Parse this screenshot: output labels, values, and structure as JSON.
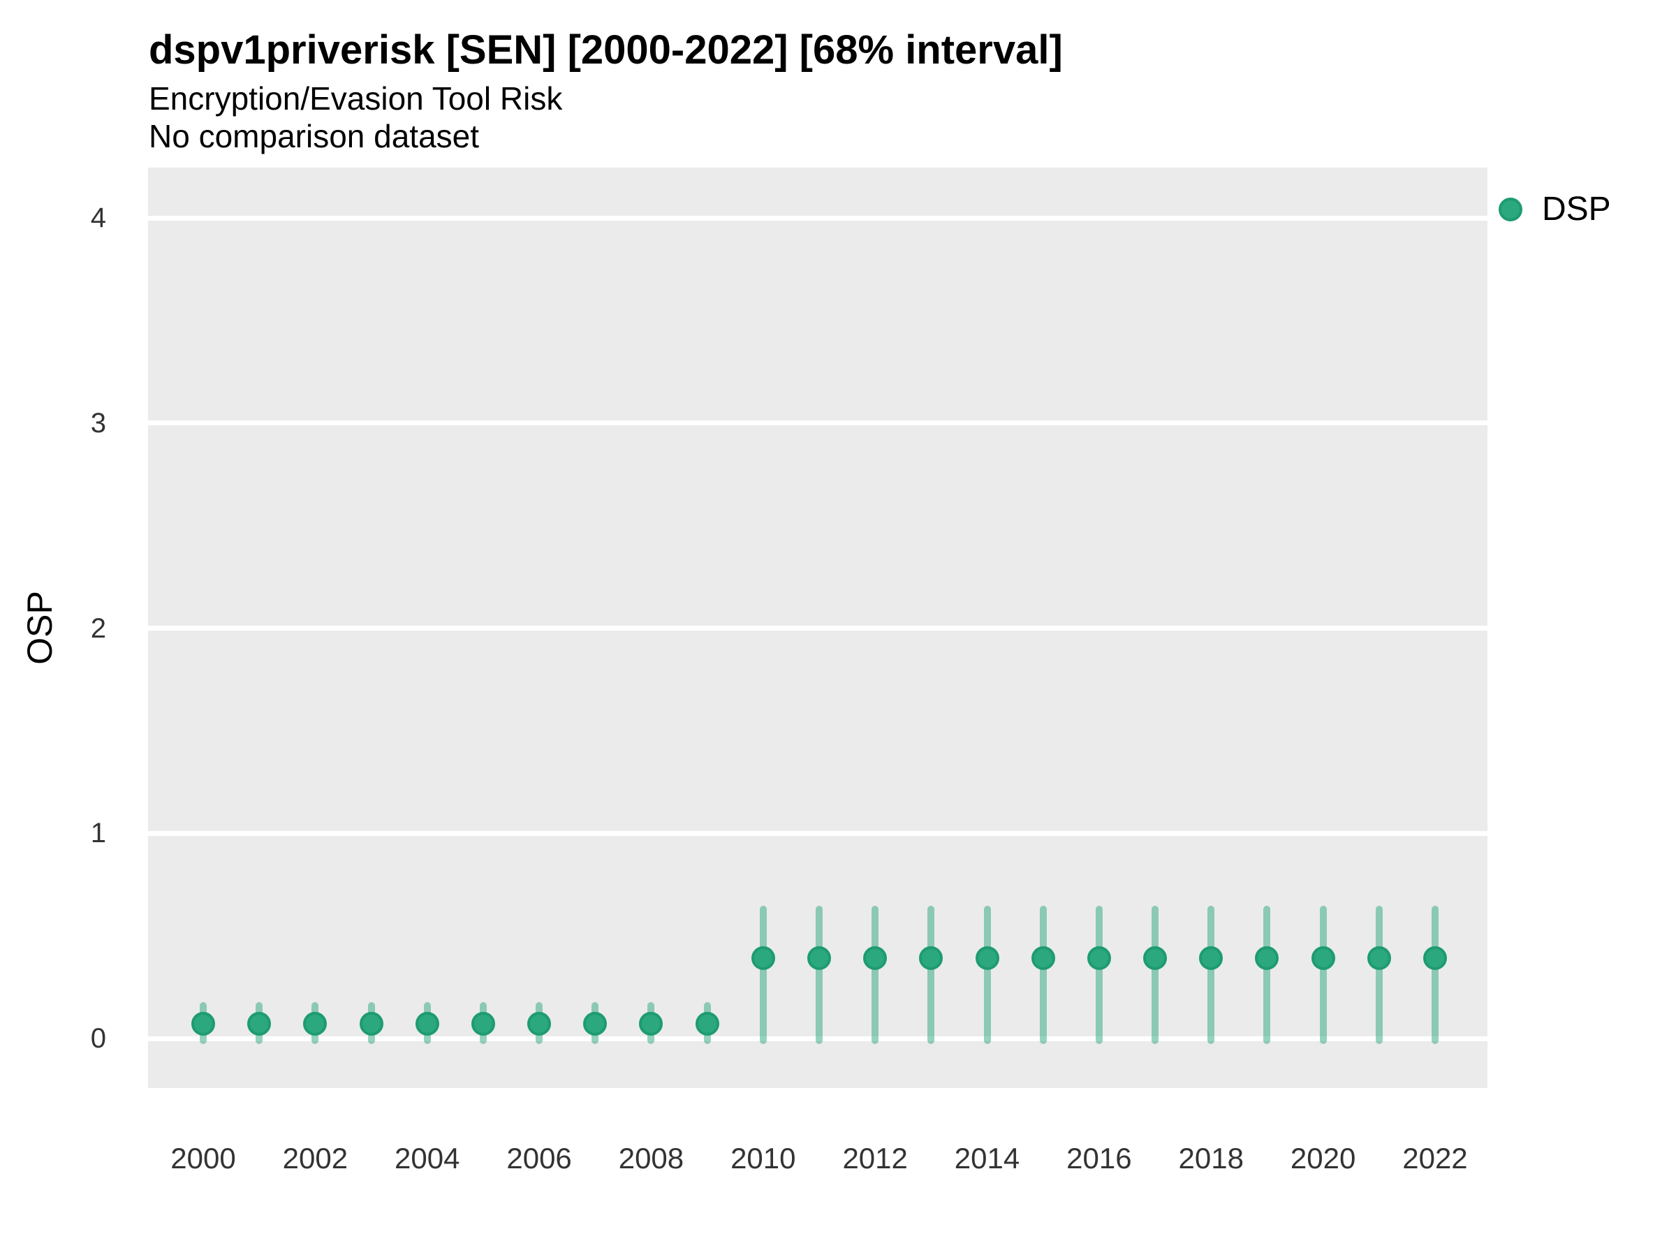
{
  "header": {
    "title": "dspv1priverisk [SEN] [2000-2022] [68% interval]",
    "subtitle": "Encryption/Evasion Tool Risk",
    "note": "No comparison dataset"
  },
  "legend": {
    "position": "top-right",
    "items": [
      {
        "label": "DSP",
        "marker": "circle",
        "color": "#2CA87F"
      }
    ]
  },
  "axes": {
    "y_label": "OSP",
    "x_label": "",
    "y_ticks": [
      0,
      1,
      2,
      3,
      4
    ],
    "x_ticks": [
      2000,
      2002,
      2004,
      2006,
      2008,
      2010,
      2012,
      2014,
      2016,
      2018,
      2020,
      2022
    ]
  },
  "chart_data": {
    "type": "scatter",
    "title": "dspv1priverisk [SEN] [2000-2022] [68% interval]",
    "subtitle": "Encryption/Evasion Tool Risk",
    "note": "No comparison dataset",
    "interval_label": "68% interval",
    "xlabel": "",
    "ylabel": "OSP",
    "x_ticks": [
      2000,
      2002,
      2004,
      2006,
      2008,
      2010,
      2012,
      2014,
      2016,
      2018,
      2020,
      2022
    ],
    "y_ticks": [
      0,
      1,
      2,
      3,
      4
    ],
    "xlim": [
      1999.0,
      2023.0
    ],
    "ylim": [
      -0.24,
      4.25
    ],
    "grid": "horizontal-major-only",
    "panel_background": "#EBEBEB",
    "gridline_color": "#FFFFFF",
    "legend_position": "top-right",
    "series": [
      {
        "name": "DSP",
        "marker_color": "#2CA87F",
        "marker_edge_color": "#1E9B73",
        "interval_color": "rgba(44,168,127,0.5)",
        "points": [
          {
            "year": 2000,
            "value": 0.07,
            "lower": -0.01,
            "upper": 0.16
          },
          {
            "year": 2001,
            "value": 0.07,
            "lower": -0.01,
            "upper": 0.16
          },
          {
            "year": 2002,
            "value": 0.07,
            "lower": -0.01,
            "upper": 0.16
          },
          {
            "year": 2003,
            "value": 0.07,
            "lower": -0.01,
            "upper": 0.16
          },
          {
            "year": 2004,
            "value": 0.07,
            "lower": -0.01,
            "upper": 0.16
          },
          {
            "year": 2005,
            "value": 0.07,
            "lower": -0.01,
            "upper": 0.16
          },
          {
            "year": 2006,
            "value": 0.07,
            "lower": -0.01,
            "upper": 0.16
          },
          {
            "year": 2007,
            "value": 0.07,
            "lower": -0.01,
            "upper": 0.16
          },
          {
            "year": 2008,
            "value": 0.07,
            "lower": -0.01,
            "upper": 0.16
          },
          {
            "year": 2009,
            "value": 0.07,
            "lower": -0.01,
            "upper": 0.16
          },
          {
            "year": 2010,
            "value": 0.39,
            "lower": -0.01,
            "upper": 0.63
          },
          {
            "year": 2011,
            "value": 0.39,
            "lower": -0.01,
            "upper": 0.63
          },
          {
            "year": 2012,
            "value": 0.39,
            "lower": -0.01,
            "upper": 0.63
          },
          {
            "year": 2013,
            "value": 0.39,
            "lower": -0.01,
            "upper": 0.63
          },
          {
            "year": 2014,
            "value": 0.39,
            "lower": -0.01,
            "upper": 0.63
          },
          {
            "year": 2015,
            "value": 0.39,
            "lower": -0.01,
            "upper": 0.63
          },
          {
            "year": 2016,
            "value": 0.39,
            "lower": -0.01,
            "upper": 0.63
          },
          {
            "year": 2017,
            "value": 0.39,
            "lower": -0.01,
            "upper": 0.63
          },
          {
            "year": 2018,
            "value": 0.39,
            "lower": -0.01,
            "upper": 0.63
          },
          {
            "year": 2019,
            "value": 0.39,
            "lower": -0.01,
            "upper": 0.63
          },
          {
            "year": 2020,
            "value": 0.39,
            "lower": -0.01,
            "upper": 0.63
          },
          {
            "year": 2021,
            "value": 0.39,
            "lower": -0.01,
            "upper": 0.63
          },
          {
            "year": 2022,
            "value": 0.39,
            "lower": -0.01,
            "upper": 0.63
          }
        ]
      }
    ]
  }
}
